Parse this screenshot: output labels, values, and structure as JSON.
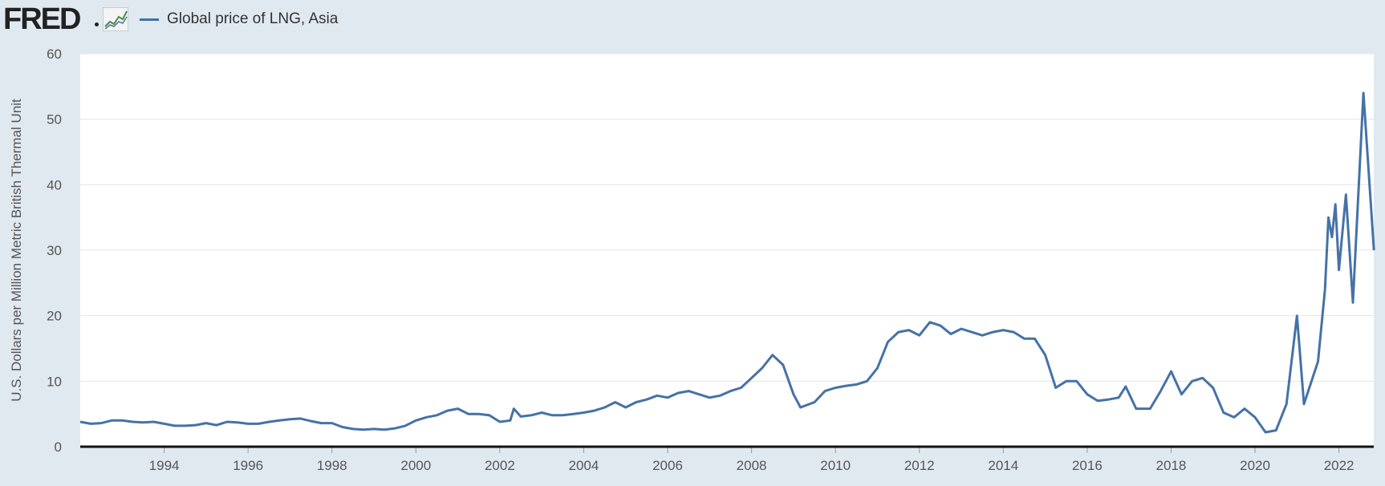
{
  "header": {
    "logo_text": "FRED",
    "logo_icon": "chart-line-icon",
    "legend_label": "Global price of LNG, Asia",
    "legend_color": "#4572a7"
  },
  "chart_data": {
    "type": "line",
    "title": "",
    "ylabel": "U.S. Dollars per Million Metric British Thermal Unit",
    "xlabel": "",
    "ylim": [
      0,
      60
    ],
    "xlim": [
      1992.0,
      2022.83
    ],
    "y_ticks": [
      0,
      10,
      20,
      30,
      40,
      50,
      60
    ],
    "x_ticks": [
      "1994",
      "1996",
      "1998",
      "2000",
      "2002",
      "2004",
      "2006",
      "2008",
      "2010",
      "2012",
      "2014",
      "2016",
      "2018",
      "2020",
      "2022"
    ],
    "grid": true,
    "legend_position": "top-left",
    "series": [
      {
        "name": "Global price of LNG, Asia",
        "color": "#4572a7",
        "points": [
          [
            "1992-01",
            3.8
          ],
          [
            "1992-04",
            3.5
          ],
          [
            "1992-07",
            3.6
          ],
          [
            "1992-10",
            4.0
          ],
          [
            "1993-01",
            4.0
          ],
          [
            "1993-04",
            3.8
          ],
          [
            "1993-07",
            3.7
          ],
          [
            "1993-10",
            3.8
          ],
          [
            "1994-01",
            3.5
          ],
          [
            "1994-04",
            3.2
          ],
          [
            "1994-07",
            3.2
          ],
          [
            "1994-10",
            3.3
          ],
          [
            "1995-01",
            3.6
          ],
          [
            "1995-04",
            3.3
          ],
          [
            "1995-07",
            3.8
          ],
          [
            "1995-10",
            3.7
          ],
          [
            "1996-01",
            3.5
          ],
          [
            "1996-04",
            3.5
          ],
          [
            "1996-07",
            3.8
          ],
          [
            "1996-10",
            4.0
          ],
          [
            "1997-01",
            4.2
          ],
          [
            "1997-04",
            4.3
          ],
          [
            "1997-07",
            3.9
          ],
          [
            "1997-10",
            3.6
          ],
          [
            "1998-01",
            3.6
          ],
          [
            "1998-04",
            3.0
          ],
          [
            "1998-07",
            2.7
          ],
          [
            "1998-10",
            2.6
          ],
          [
            "1999-01",
            2.7
          ],
          [
            "1999-04",
            2.6
          ],
          [
            "1999-07",
            2.8
          ],
          [
            "1999-10",
            3.2
          ],
          [
            "2000-01",
            4.0
          ],
          [
            "2000-04",
            4.5
          ],
          [
            "2000-07",
            4.8
          ],
          [
            "2000-10",
            5.5
          ],
          [
            "2001-01",
            5.8
          ],
          [
            "2001-04",
            5.0
          ],
          [
            "2001-07",
            5.0
          ],
          [
            "2001-10",
            4.8
          ],
          [
            "2002-01",
            3.8
          ],
          [
            "2002-04",
            4.0
          ],
          [
            "2002-05",
            5.8
          ],
          [
            "2002-07",
            4.6
          ],
          [
            "2002-10",
            4.8
          ],
          [
            "2003-01",
            5.2
          ],
          [
            "2003-04",
            4.8
          ],
          [
            "2003-07",
            4.8
          ],
          [
            "2003-10",
            5.0
          ],
          [
            "2004-01",
            5.2
          ],
          [
            "2004-04",
            5.5
          ],
          [
            "2004-07",
            6.0
          ],
          [
            "2004-10",
            6.8
          ],
          [
            "2005-01",
            6.0
          ],
          [
            "2005-04",
            6.8
          ],
          [
            "2005-07",
            7.2
          ],
          [
            "2005-10",
            7.8
          ],
          [
            "2006-01",
            7.5
          ],
          [
            "2006-04",
            8.2
          ],
          [
            "2006-07",
            8.5
          ],
          [
            "2006-10",
            8.0
          ],
          [
            "2007-01",
            7.5
          ],
          [
            "2007-04",
            7.8
          ],
          [
            "2007-07",
            8.5
          ],
          [
            "2007-10",
            9.0
          ],
          [
            "2008-01",
            10.5
          ],
          [
            "2008-04",
            12.0
          ],
          [
            "2008-07",
            14.0
          ],
          [
            "2008-10",
            12.5
          ],
          [
            "2009-01",
            8.0
          ],
          [
            "2009-03",
            6.0
          ],
          [
            "2009-07",
            6.8
          ],
          [
            "2009-10",
            8.5
          ],
          [
            "2010-01",
            9.0
          ],
          [
            "2010-04",
            9.3
          ],
          [
            "2010-07",
            9.5
          ],
          [
            "2010-10",
            10.0
          ],
          [
            "2011-01",
            12.0
          ],
          [
            "2011-04",
            16.0
          ],
          [
            "2011-07",
            17.5
          ],
          [
            "2011-10",
            17.8
          ],
          [
            "2012-01",
            17.0
          ],
          [
            "2012-04",
            19.0
          ],
          [
            "2012-07",
            18.5
          ],
          [
            "2012-10",
            17.2
          ],
          [
            "2013-01",
            18.0
          ],
          [
            "2013-04",
            17.5
          ],
          [
            "2013-07",
            17.0
          ],
          [
            "2013-10",
            17.5
          ],
          [
            "2014-01",
            17.8
          ],
          [
            "2014-04",
            17.5
          ],
          [
            "2014-07",
            16.5
          ],
          [
            "2014-10",
            16.5
          ],
          [
            "2015-01",
            14.0
          ],
          [
            "2015-04",
            9.0
          ],
          [
            "2015-07",
            10.0
          ],
          [
            "2015-10",
            10.0
          ],
          [
            "2016-01",
            8.0
          ],
          [
            "2016-04",
            7.0
          ],
          [
            "2016-07",
            7.2
          ],
          [
            "2016-10",
            7.5
          ],
          [
            "2016-12",
            9.2
          ],
          [
            "2017-03",
            5.8
          ],
          [
            "2017-07",
            5.8
          ],
          [
            "2017-10",
            8.5
          ],
          [
            "2018-01",
            11.5
          ],
          [
            "2018-04",
            8.0
          ],
          [
            "2018-07",
            10.0
          ],
          [
            "2018-10",
            10.5
          ],
          [
            "2019-01",
            9.0
          ],
          [
            "2019-04",
            5.2
          ],
          [
            "2019-07",
            4.5
          ],
          [
            "2019-10",
            5.8
          ],
          [
            "2020-01",
            4.5
          ],
          [
            "2020-04",
            2.2
          ],
          [
            "2020-07",
            2.5
          ],
          [
            "2020-10",
            6.5
          ],
          [
            "2021-01",
            20.0
          ],
          [
            "2021-03",
            6.5
          ],
          [
            "2021-07",
            13.0
          ],
          [
            "2021-09",
            24.0
          ],
          [
            "2021-10",
            35.0
          ],
          [
            "2021-11",
            32.0
          ],
          [
            "2021-12",
            37.0
          ],
          [
            "2022-01",
            27.0
          ],
          [
            "2022-03",
            38.5
          ],
          [
            "2022-05",
            22.0
          ],
          [
            "2022-08",
            54.0
          ],
          [
            "2022-11",
            30.0
          ]
        ]
      }
    ]
  }
}
